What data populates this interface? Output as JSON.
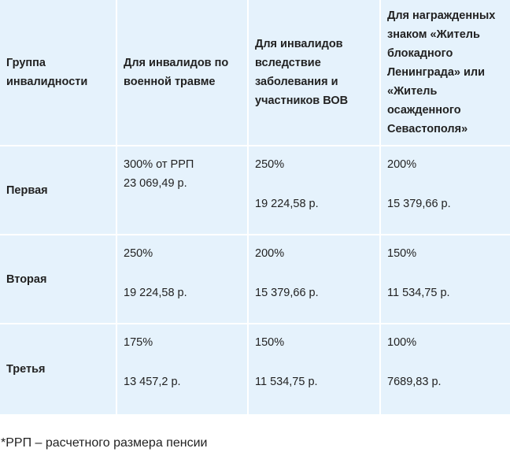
{
  "table": {
    "headers": [
      "Группа инвалидности",
      "Для инвалидов по военной травме",
      "Для инвалидов вследствие заболевания и участников ВОВ",
      "Для награжденных знаком «Житель блокадного Ленинграда» или «Житель осажденного Севастополя»"
    ],
    "rows": [
      {
        "group": "Первая",
        "military": {
          "percent": "300% от РРП",
          "amount": "23 069,49 р."
        },
        "illness": {
          "percent": "250%",
          "amount": "19 224,58 р."
        },
        "awarded": {
          "percent": "200%",
          "amount": "15 379,66 р."
        }
      },
      {
        "group": "Вторая",
        "military": {
          "percent": "250%",
          "amount": "19 224,58 р."
        },
        "illness": {
          "percent": "200%",
          "amount": "15 379,66 р."
        },
        "awarded": {
          "percent": "150%",
          "amount": "11 534,75 р."
        }
      },
      {
        "group": "Третья",
        "military": {
          "percent": "175%",
          "amount": "13 457,2 р."
        },
        "illness": {
          "percent": "150%",
          "amount": "11 534,75 р."
        },
        "awarded": {
          "percent": "100%",
          "amount": "7689,83 р."
        }
      }
    ]
  },
  "footnote": "*РРП – расчетного размера пенсии",
  "colors": {
    "cell_background": "#e5f2fc",
    "text": "#222222"
  }
}
